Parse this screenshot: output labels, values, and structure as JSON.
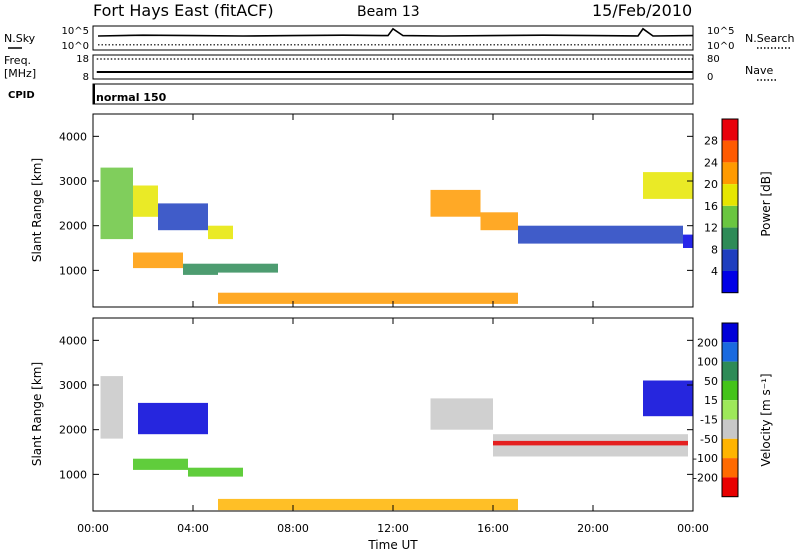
{
  "header": {
    "site_title": "Fort Hays East (fitACF)",
    "beam": "Beam 13",
    "date": "15/Feb/2010"
  },
  "x_axis": {
    "label": "Time UT",
    "ticks": [
      "00:00",
      "04:00",
      "08:00",
      "12:00",
      "16:00",
      "20:00",
      "00:00"
    ]
  },
  "colors": {
    "line": "#000000",
    "background": "#ffffff"
  },
  "chart_data": [
    {
      "type": "line",
      "panel": "noise",
      "left_label": "N.Sky",
      "right_label": "N.Search",
      "yticks_left": [
        "10^5",
        "10^0"
      ],
      "yticks_right": [
        "10^5",
        "10^0"
      ],
      "xlim": [
        0,
        24
      ],
      "scale": "log",
      "series": [
        {
          "name": "N.Sky",
          "style": "solid",
          "x": [
            0.2,
            2,
            4,
            6,
            8,
            10,
            11.8,
            12,
            12.4,
            14,
            16,
            18,
            20,
            21.8,
            22,
            22.4,
            24
          ],
          "y": [
            3,
            3.2,
            3.1,
            3.0,
            3.1,
            3.2,
            3.1,
            4.8,
            3.1,
            3.0,
            3.1,
            3.2,
            3.1,
            3.0,
            4.8,
            3.0,
            3.1
          ]
        },
        {
          "name": "N.Search",
          "style": "dotted",
          "x": [
            0.2,
            4,
            8,
            12,
            16,
            20,
            24
          ],
          "y": [
            0.8,
            0.8,
            0.8,
            0.8,
            0.8,
            0.8,
            0.8
          ]
        }
      ]
    },
    {
      "type": "line",
      "panel": "frequency",
      "left_label": "Freq. [MHz]",
      "right_label": "Nave",
      "yticks_left": [
        "18",
        "8"
      ],
      "yticks_right": [
        "80",
        "0"
      ],
      "xlim": [
        0,
        24
      ],
      "series": [
        {
          "name": "Freq.",
          "style": "solid",
          "x": [
            0.15,
            24
          ],
          "y": [
            10.5,
            10.5
          ]
        },
        {
          "name": "Nave",
          "style": "dotted",
          "x": [
            0.15,
            24
          ],
          "y": [
            72,
            72
          ]
        }
      ],
      "cpid_label": "CPID",
      "cpid_text": "normal 150"
    },
    {
      "type": "heatmap",
      "panel": "power",
      "ylabel": "Slant Range [km]",
      "yticks": [
        "4000",
        "3000",
        "2000",
        "1000"
      ],
      "ylim": [
        180,
        4500
      ],
      "xlim": [
        0,
        24
      ],
      "colorbar": {
        "label": "Power [dB]",
        "ticks": [
          "28",
          "24",
          "20",
          "16",
          "12",
          "8",
          "4"
        ],
        "colors": [
          "#e8000b",
          "#ff5a00",
          "#ff9a00",
          "#e6e600",
          "#6ac640",
          "#2e8b57",
          "#1f3fbf",
          "#0000e6"
        ]
      },
      "regions": [
        {
          "t": [
            0.3,
            1.6
          ],
          "r": [
            1700,
            3300
          ],
          "level": 4
        },
        {
          "t": [
            1.6,
            2.6
          ],
          "r": [
            2200,
            2900
          ],
          "level": 3
        },
        {
          "t": [
            2.6,
            4.6
          ],
          "r": [
            1900,
            2500
          ],
          "level": 6
        },
        {
          "t": [
            4.6,
            5.6
          ],
          "r": [
            1700,
            2000
          ],
          "level": 3
        },
        {
          "t": [
            1.6,
            3.6
          ],
          "r": [
            1050,
            1400
          ],
          "level": 2
        },
        {
          "t": [
            3.6,
            5.0
          ],
          "r": [
            900,
            1150
          ],
          "level": 5
        },
        {
          "t": [
            5.0,
            7.4
          ],
          "r": [
            950,
            1150
          ],
          "level": 5
        },
        {
          "t": [
            5.0,
            17.0
          ],
          "r": [
            250,
            500
          ],
          "level": 2
        },
        {
          "t": [
            13.5,
            15.5
          ],
          "r": [
            2200,
            2800
          ],
          "level": 2
        },
        {
          "t": [
            15.5,
            17.0
          ],
          "r": [
            1900,
            2300
          ],
          "level": 2
        },
        {
          "t": [
            17.0,
            23.6
          ],
          "r": [
            1600,
            2000
          ],
          "level": 6
        },
        {
          "t": [
            23.6,
            24.0
          ],
          "r": [
            1500,
            1800
          ],
          "level": 7
        },
        {
          "t": [
            22.0,
            24.0
          ],
          "r": [
            2600,
            3200
          ],
          "level": 3
        }
      ]
    },
    {
      "type": "heatmap",
      "panel": "velocity",
      "ylabel": "Slant Range [km]",
      "yticks": [
        "4000",
        "3000",
        "2000",
        "1000"
      ],
      "ylim": [
        180,
        4500
      ],
      "xlim": [
        0,
        24
      ],
      "colorbar": {
        "label": "Velocity [m s⁻¹]",
        "ticks": [
          "200",
          "100",
          "50",
          "15",
          "-15",
          "-50",
          "-100",
          "-200"
        ],
        "colors": [
          "#0000d8",
          "#1a6ae0",
          "#2e8b57",
          "#44c41a",
          "#9ee85a",
          "#c8c8c8",
          "#ffb400",
          "#ff6a00",
          "#e80000"
        ]
      },
      "regions": [
        {
          "t": [
            0.3,
            1.2
          ],
          "r": [
            1800,
            3200
          ],
          "level": 5
        },
        {
          "t": [
            1.8,
            4.6
          ],
          "r": [
            1900,
            2600
          ],
          "level": 0
        },
        {
          "t": [
            1.6,
            3.8
          ],
          "r": [
            1100,
            1350
          ],
          "level": 3
        },
        {
          "t": [
            3.8,
            6.0
          ],
          "r": [
            950,
            1150
          ],
          "level": 3
        },
        {
          "t": [
            5.0,
            17.0
          ],
          "r": [
            200,
            450
          ],
          "level": 6
        },
        {
          "t": [
            13.5,
            16.0
          ],
          "r": [
            2000,
            2700
          ],
          "level": 5
        },
        {
          "t": [
            16.0,
            23.8
          ],
          "r": [
            1400,
            1900
          ],
          "level": 5
        },
        {
          "t": [
            16.0,
            23.8
          ],
          "r": [
            1650,
            1750
          ],
          "level": 8
        },
        {
          "t": [
            22.0,
            24.0
          ],
          "r": [
            2300,
            3100
          ],
          "level": 0
        }
      ]
    }
  ]
}
